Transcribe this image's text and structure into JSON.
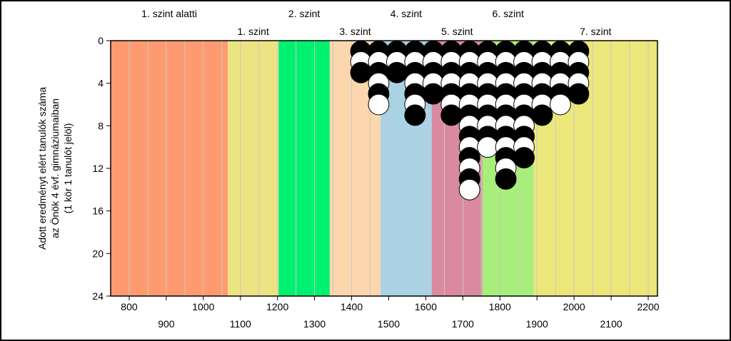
{
  "chart_data": {
    "type": "dot",
    "ylabel_lines": [
      "Adott eredményt elért tanulók száma",
      "az Önök 4 évf. gimnáziumaiban",
      "(1 kör 1 tanulót jelöl)"
    ],
    "xlim": [
      750,
      2225
    ],
    "ylim": [
      0,
      24
    ],
    "x_ticks_top_row": [
      800,
      1000,
      1200,
      1400,
      1600,
      1800,
      2000,
      2200
    ],
    "x_ticks_bottom_row": [
      900,
      1100,
      1300,
      1500,
      1700,
      1900,
      2100
    ],
    "y_ticks": [
      0,
      4,
      8,
      12,
      16,
      20,
      24
    ],
    "levels": [
      {
        "name": "1. szint alatti",
        "from": 750,
        "to": 1066,
        "color": "#ff9a70",
        "label_row": "upper"
      },
      {
        "name": "1. szint",
        "from": 1066,
        "to": 1203,
        "color": "#ece482",
        "label_row": "lower"
      },
      {
        "name": "2. szint",
        "from": 1203,
        "to": 1341,
        "color": "#00f070",
        "label_row": "upper"
      },
      {
        "name": "3. szint",
        "from": 1341,
        "to": 1478,
        "color": "#fcd6ac",
        "label_row": "lower"
      },
      {
        "name": "4. szint",
        "from": 1478,
        "to": 1616,
        "color": "#a9d3e4",
        "label_row": "upper"
      },
      {
        "name": "5. szint",
        "from": 1616,
        "to": 1753,
        "color": "#d98aa0",
        "label_row": "lower"
      },
      {
        "name": "6. szint",
        "from": 1753,
        "to": 1891,
        "color": "#a8ee7a",
        "label_row": "upper"
      },
      {
        "name": "7. szint",
        "from": 1891,
        "to": 2225,
        "color": "#ece77a",
        "label_row": "lower"
      }
    ],
    "columns": [
      {
        "x": 1425,
        "count": 3
      },
      {
        "x": 1473,
        "count": 6
      },
      {
        "x": 1522,
        "count": 3
      },
      {
        "x": 1571,
        "count": 7
      },
      {
        "x": 1620,
        "count": 5
      },
      {
        "x": 1669,
        "count": 7
      },
      {
        "x": 1718,
        "count": 14
      },
      {
        "x": 1767,
        "count": 10
      },
      {
        "x": 1816,
        "count": 13
      },
      {
        "x": 1865,
        "count": 11
      },
      {
        "x": 1914,
        "count": 7
      },
      {
        "x": 1963,
        "count": 6
      },
      {
        "x": 2012,
        "count": 5
      }
    ],
    "colors": {
      "dot_dark": "#000000",
      "dot_light": "#ffffff",
      "gridline": "#c8c8c8"
    }
  }
}
